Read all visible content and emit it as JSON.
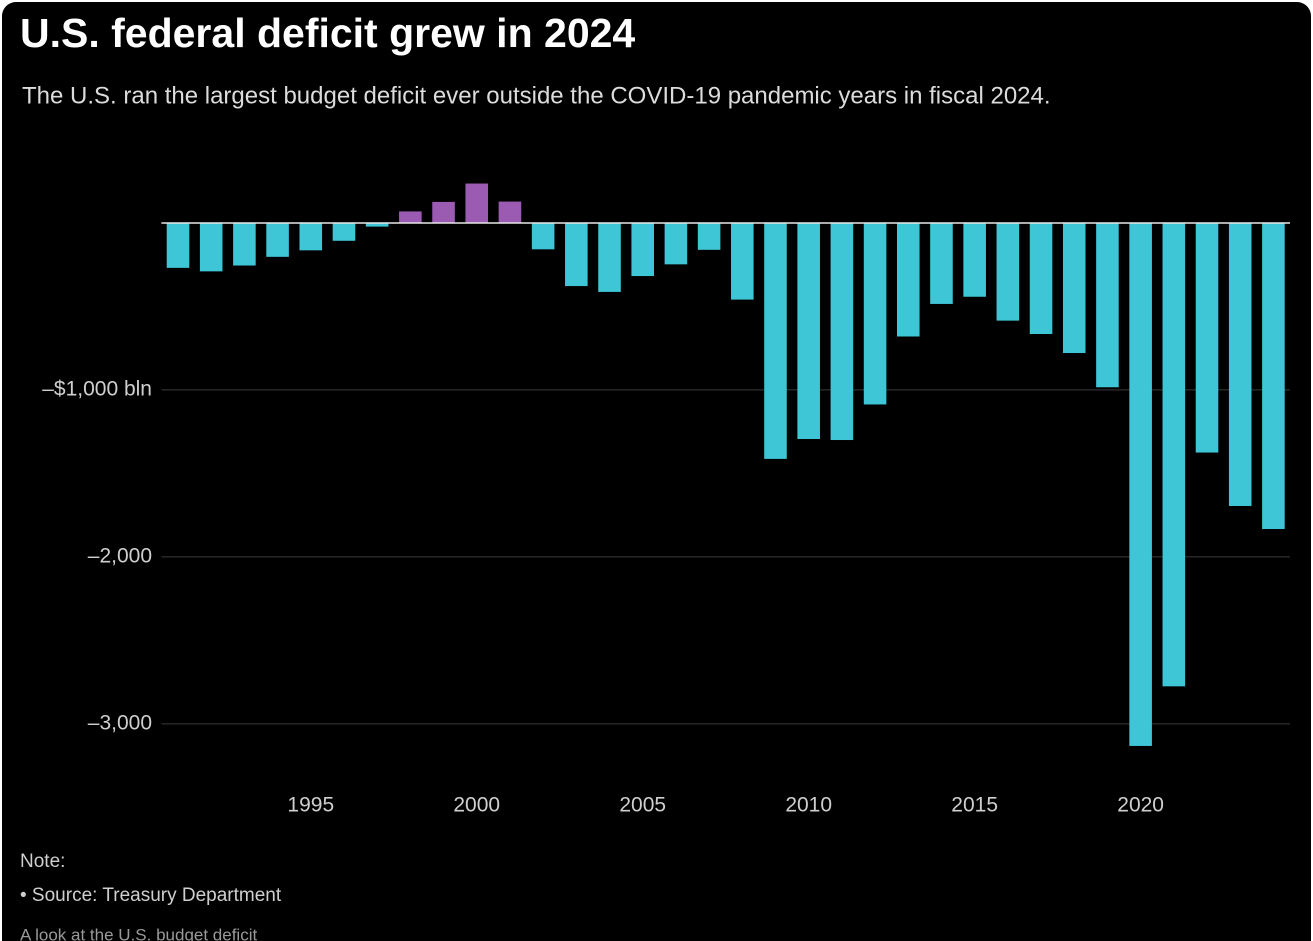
{
  "chart_data": {
    "type": "bar",
    "title": "U.S. federal deficit grew in 2024",
    "subtitle": "The U.S. ran the largest budget deficit ever outside the COVID-19 pandemic years in fiscal 2024.",
    "x": [
      1991,
      1992,
      1993,
      1994,
      1995,
      1996,
      1997,
      1998,
      1999,
      2000,
      2001,
      2002,
      2003,
      2004,
      2005,
      2006,
      2007,
      2008,
      2009,
      2010,
      2011,
      2012,
      2013,
      2014,
      2015,
      2016,
      2017,
      2018,
      2019,
      2020,
      2021,
      2022,
      2023,
      2024
    ],
    "values": [
      -269,
      -290,
      -255,
      -203,
      -164,
      -107,
      -22,
      69,
      126,
      236,
      128,
      -158,
      -378,
      -413,
      -318,
      -248,
      -161,
      -459,
      -1413,
      -1294,
      -1300,
      -1087,
      -680,
      -485,
      -442,
      -585,
      -665,
      -779,
      -984,
      -3132,
      -2775,
      -1375,
      -1695,
      -1833
    ],
    "color_positive": "#9b5bb3",
    "color_negative": "#3ec6d6",
    "xlim": [
      1990.5,
      2024.5
    ],
    "xticks": [
      1995,
      2000,
      2005,
      2010,
      2015,
      2020
    ],
    "ylim": [
      -3300,
      350
    ],
    "yticks": [
      {
        "value": -1000,
        "label": "–$1,000 bln"
      },
      {
        "value": -2000,
        "label": "–2,000"
      },
      {
        "value": -3000,
        "label": "–3,000"
      }
    ],
    "grid": true,
    "notes": [
      "Note:",
      "• Source: Treasury Department",
      "A look at the U.S. budget deficit"
    ]
  }
}
